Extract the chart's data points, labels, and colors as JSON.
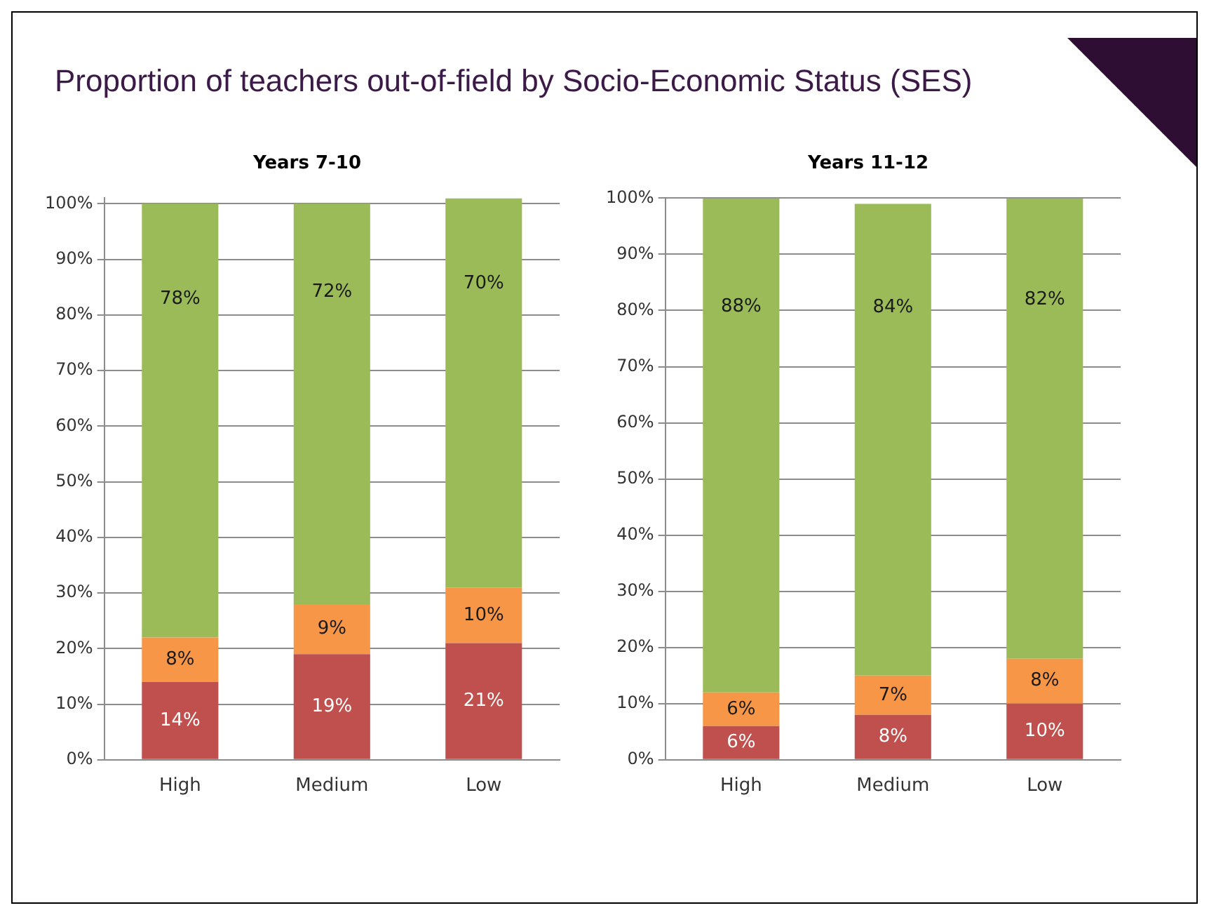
{
  "chart_data": [
    {
      "type": "bar",
      "title": "Proportion of teachers out-of-field by Socio-Economic Status (SES)",
      "subtitle": "Years 7-10",
      "categories": [
        "High",
        "Medium",
        "Low"
      ],
      "stacked": true,
      "series": [
        {
          "color": "#c0504d",
          "values": [
            14,
            19,
            21
          ],
          "value_labels": [
            "14%",
            "19%",
            "21%"
          ]
        },
        {
          "color": "#f79646",
          "values": [
            8,
            9,
            10
          ],
          "value_labels": [
            "8%",
            "9%",
            "10%"
          ]
        },
        {
          "color": "#9bbb59",
          "values": [
            78,
            72,
            70
          ],
          "value_labels": [
            "78%",
            "72%",
            "70%"
          ]
        }
      ],
      "ylim": [
        0,
        101
      ],
      "yticks": [
        {
          "value": 0,
          "label": "0%"
        },
        {
          "value": 10,
          "label": "10%"
        },
        {
          "value": 20,
          "label": "20%"
        },
        {
          "value": 30,
          "label": "30%"
        },
        {
          "value": 40,
          "label": "40%"
        },
        {
          "value": 50,
          "label": "50%"
        },
        {
          "value": 60,
          "label": "60%"
        },
        {
          "value": 70,
          "label": "70%"
        },
        {
          "value": 80,
          "label": "80%"
        },
        {
          "value": 90,
          "label": "90%"
        },
        {
          "value": 100,
          "label": "100%"
        }
      ],
      "grid": "y",
      "legend": false
    },
    {
      "type": "bar",
      "title": "Years 11-12",
      "categories": [
        "High",
        "Medium",
        "Low"
      ],
      "stacked": true,
      "series": [
        {
          "color": "#c0504d",
          "values": [
            6,
            8,
            10
          ],
          "value_labels": [
            "6%",
            "8%",
            "10%"
          ]
        },
        {
          "color": "#f79646",
          "values": [
            6,
            7,
            8
          ],
          "value_labels": [
            "6%",
            "7%",
            "8%"
          ]
        },
        {
          "color": "#9bbb59",
          "values": [
            88,
            84,
            82
          ],
          "value_labels": [
            "88%",
            "84%",
            "82%"
          ]
        }
      ],
      "ylim": [
        0,
        100
      ],
      "yticks": [
        {
          "value": 0,
          "label": "0%"
        },
        {
          "value": 10,
          "label": "10%"
        },
        {
          "value": 20,
          "label": "20%"
        },
        {
          "value": 30,
          "label": "30%"
        },
        {
          "value": 40,
          "label": "40%"
        },
        {
          "value": 50,
          "label": "50%"
        },
        {
          "value": 60,
          "label": "60%"
        },
        {
          "value": 70,
          "label": "70%"
        },
        {
          "value": 80,
          "label": "80%"
        },
        {
          "value": 90,
          "label": "90%"
        },
        {
          "value": 100,
          "label": "100%"
        }
      ],
      "grid": "y",
      "legend": false
    }
  ]
}
